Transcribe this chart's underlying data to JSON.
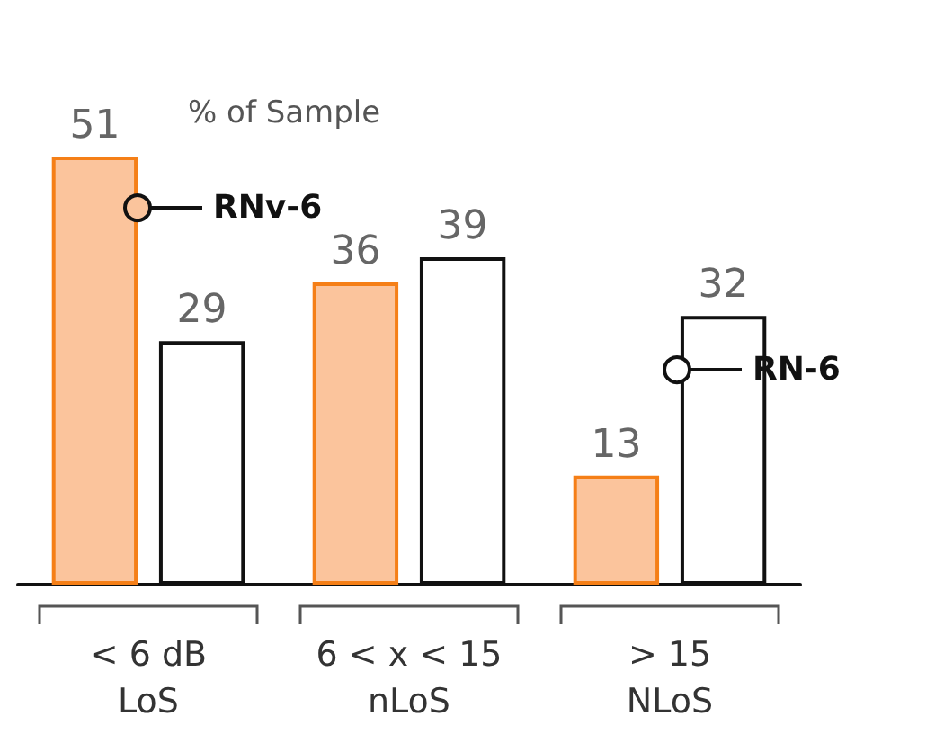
{
  "chart_data": {
    "type": "bar",
    "categories": [
      "< 6 dB\nLoS",
      "6 < x < 15\nnLoS",
      "> 15\nNLoS"
    ],
    "series": [
      {
        "name": "RNv-6",
        "color": "#fbc49c",
        "values": [
          51,
          36,
          13
        ]
      },
      {
        "name": "RN-6",
        "color": "#ffffff",
        "values": [
          29,
          39,
          32
        ]
      }
    ],
    "data_labels": true,
    "annotations": [
      "% of Sample"
    ],
    "legend": "right",
    "grid": false
  }
}
